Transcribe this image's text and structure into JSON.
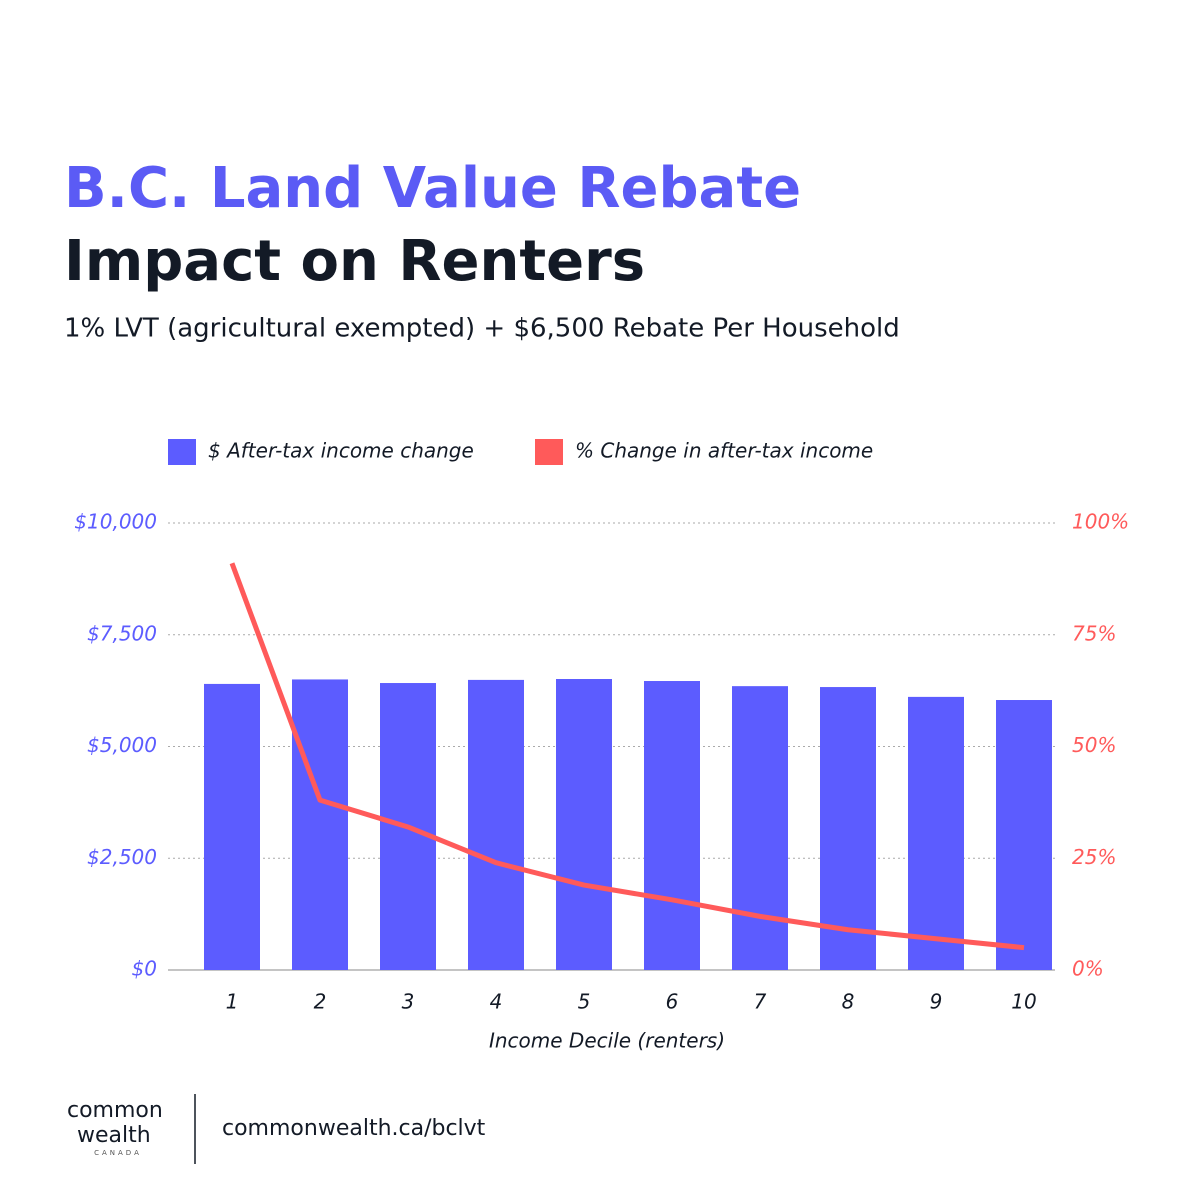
{
  "chart_data": {
    "type": "bar",
    "title": "B.C. Land Value Rebate",
    "subtitle_main": "Impact on Renters",
    "subtitle": "1% LVT (agricultural exempted) + $6,500 Rebate Per Household",
    "x_label": "Income Decile (renters)",
    "categories": [
      "1",
      "2",
      "3",
      "4",
      "5",
      "6",
      "7",
      "8",
      "9",
      "10"
    ],
    "series": [
      {
        "name": "$ After-tax income change",
        "type": "bar",
        "color": "#5c5cff",
        "axis": "y",
        "values": [
          6400,
          6500,
          6420,
          6490,
          6510,
          6465,
          6350,
          6330,
          6110,
          6040
        ]
      },
      {
        "name": "% Change in after-tax income",
        "type": "line",
        "color": "#ff5a5a",
        "axis": "y2",
        "values": [
          91,
          38,
          32,
          24,
          19,
          15.7,
          12,
          9,
          7,
          5
        ]
      }
    ],
    "ylim": [
      0,
      10000
    ],
    "yticks": [
      {
        "value": 0,
        "label": "$0"
      },
      {
        "value": 2500,
        "label": "$2,500"
      },
      {
        "value": 5000,
        "label": "$5,000"
      },
      {
        "value": 7500,
        "label": "$7,500"
      },
      {
        "value": 10000,
        "label": "$10,000"
      }
    ],
    "y2lim": [
      0,
      100
    ],
    "y2ticks": [
      {
        "value": 0,
        "label": "0%"
      },
      {
        "value": 25,
        "label": "25%"
      },
      {
        "value": 50,
        "label": "50%"
      },
      {
        "value": 75,
        "label": "75%"
      },
      {
        "value": 100,
        "label": "100%"
      }
    ],
    "grid": true,
    "legend": "top"
  },
  "footer": {
    "logo": [
      "common",
      "wealth",
      "CANADA"
    ],
    "url": "commonwealth.ca/bclvt"
  }
}
